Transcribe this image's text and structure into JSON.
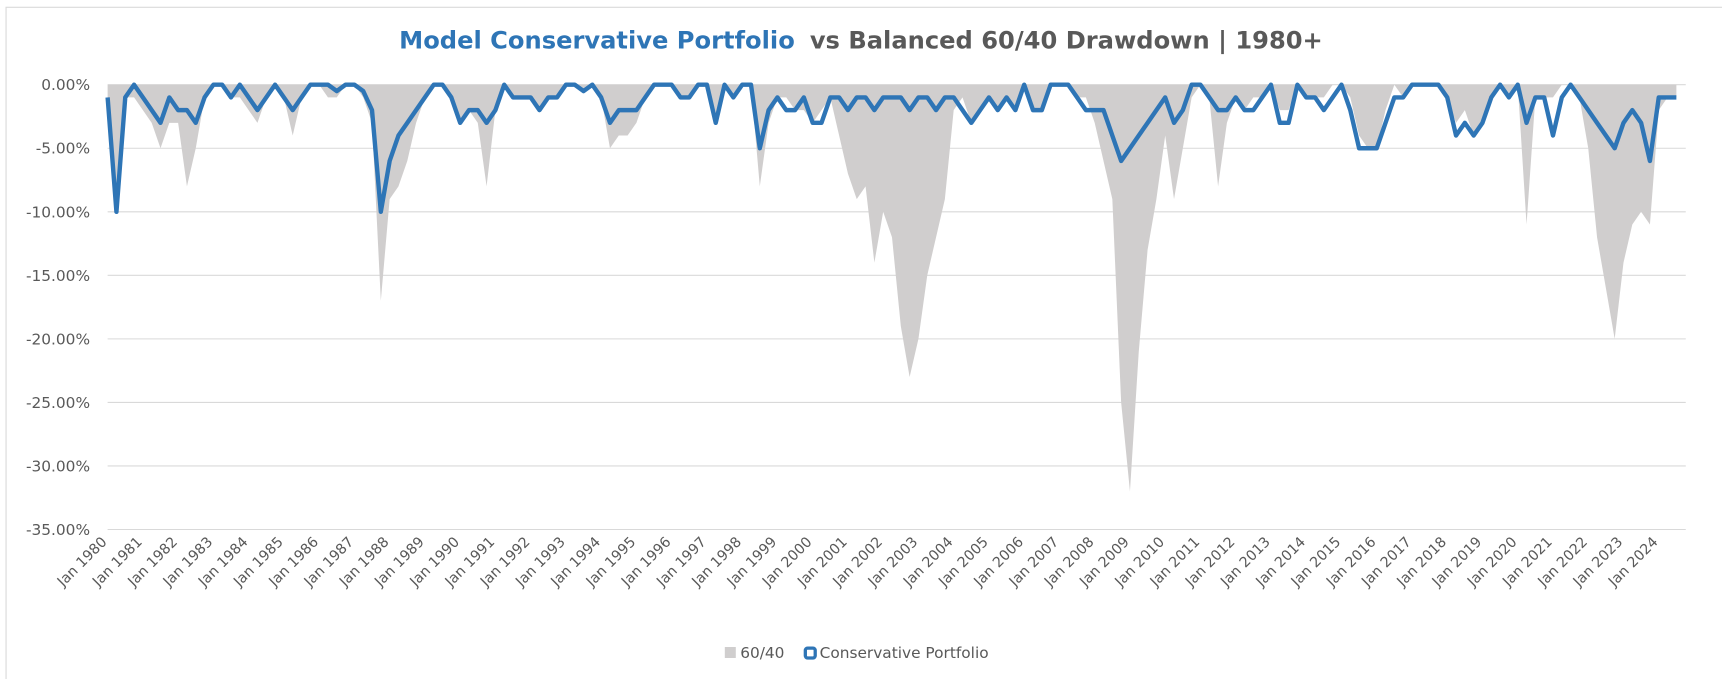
{
  "chart_data": {
    "type": "area_line",
    "title": [
      {
        "text": "Model Conservative Portfolio",
        "color": "#2e75b6"
      },
      {
        "text": "vs Balanced 60/40 Drawdown | 1980+",
        "color": "#595959"
      }
    ],
    "categories": [
      "Jan 1980",
      null,
      null,
      null,
      "Jan 1981",
      null,
      null,
      null,
      "Jan 1982",
      null,
      null,
      null,
      "Jan 1983",
      null,
      null,
      null,
      "Jan 1984",
      null,
      null,
      null,
      "Jan 1985",
      null,
      null,
      null,
      "Jan 1986",
      null,
      null,
      null,
      "Jan 1987",
      null,
      null,
      null,
      "Jan 1988",
      null,
      null,
      null,
      "Jan 1989",
      null,
      null,
      null,
      "Jan 1990",
      null,
      null,
      null,
      "Jan 1991",
      null,
      null,
      null,
      "Jan 1992",
      null,
      null,
      null,
      "Jan 1993",
      null,
      null,
      null,
      "Jan 1994",
      null,
      null,
      null,
      "Jan 1995",
      null,
      null,
      null,
      "Jan 1996",
      null,
      null,
      null,
      "Jan 1997",
      null,
      null,
      null,
      "Jan 1998",
      null,
      null,
      null,
      "Jan 1999",
      null,
      null,
      null,
      "Jan 2000",
      null,
      null,
      null,
      "Jan 2001",
      null,
      null,
      null,
      "Jan 2002",
      null,
      null,
      null,
      "Jan 2003",
      null,
      null,
      null,
      "Jan 2004",
      null,
      null,
      null,
      "Jan 2005",
      null,
      null,
      null,
      "Jan 2006",
      null,
      null,
      null,
      "Jan 2007",
      null,
      null,
      null,
      "Jan 2008",
      null,
      null,
      null,
      "Jan 2009",
      null,
      null,
      null,
      "Jan 2010",
      null,
      null,
      null,
      "Jan 2011",
      null,
      null,
      null,
      "Jan 2012",
      null,
      null,
      null,
      "Jan 2013",
      null,
      null,
      null,
      "Jan 2014",
      null,
      null,
      null,
      "Jan 2015",
      null,
      null,
      null,
      "Jan 2016",
      null,
      null,
      null,
      "Jan 2017",
      null,
      null,
      null,
      "Jan 2018",
      null,
      null,
      null,
      "Jan 2019",
      null,
      null,
      null,
      "Jan 2020",
      null,
      null,
      null,
      "Jan 2021",
      null,
      null,
      null,
      "Jan 2022",
      null,
      null,
      null,
      "Jan 2023",
      null,
      null,
      null,
      "Jan 2024",
      null,
      null
    ],
    "series": [
      {
        "name": "60/40",
        "color": "#d0cece",
        "kind": "area",
        "values": [
          -2,
          -10,
          -1,
          -1,
          -2,
          -3,
          -5,
          -3,
          -3,
          -8,
          -5,
          -1,
          0,
          0,
          -1,
          -1,
          -2,
          -3,
          -1,
          0,
          -1,
          -4,
          -1,
          0,
          0,
          -1,
          -1,
          0,
          0,
          -1,
          -3,
          -17,
          -9,
          -8,
          -6,
          -3,
          -1,
          0,
          0,
          -1,
          -3,
          -2,
          -3,
          -8,
          -2,
          0,
          -1,
          -1,
          -1,
          -2,
          -1,
          -1,
          0,
          0,
          -0.5,
          0,
          -1,
          -5,
          -4,
          -4,
          -3,
          -1,
          0,
          0,
          0,
          -1,
          -1,
          0,
          0,
          -3,
          0,
          -1,
          0,
          0,
          -8,
          -3,
          -1,
          -1,
          -2,
          -2,
          -3,
          -2,
          -1,
          -4,
          -7,
          -9,
          -8,
          -14,
          -10,
          -12,
          -19,
          -23,
          -20,
          -15,
          -12,
          -9,
          -2,
          -1,
          -3,
          -2,
          -1,
          -2,
          -1,
          -2,
          0,
          -2,
          -2,
          0,
          0,
          0,
          -1,
          -1,
          -3,
          -6,
          -9,
          -25,
          -32,
          -21,
          -13,
          -9,
          -4,
          -9,
          -5,
          -1,
          0,
          -1,
          -8,
          -3,
          -1,
          -2,
          -1,
          -1,
          0,
          -2,
          -2,
          0,
          -1,
          -1,
          -1,
          0,
          0,
          -1,
          -4,
          -5,
          -5,
          -2,
          0,
          -1,
          0,
          0,
          0,
          0,
          -1,
          -3,
          -2,
          -4,
          -3,
          -1,
          0,
          -1,
          0,
          -11,
          -1,
          -1,
          -1,
          0,
          0,
          -1,
          -5,
          -12,
          -16,
          -20,
          -14,
          -11,
          -10,
          -11,
          -2,
          -1,
          -1
        ]
      },
      {
        "name": "Conservative Portfolio",
        "color": "#2e75b6",
        "kind": "line",
        "values": [
          -1,
          -10,
          -1,
          0,
          -1,
          -2,
          -3,
          -1,
          -2,
          -2,
          -3,
          -1,
          0,
          0,
          -1,
          0,
          -1,
          -2,
          -1,
          0,
          -1,
          -2,
          -1,
          0,
          0,
          0,
          -0.5,
          0,
          0,
          -0.5,
          -2,
          -10,
          -6,
          -4,
          -3,
          -2,
          -1,
          0,
          0,
          -1,
          -3,
          -2,
          -2,
          -3,
          -2,
          0,
          -1,
          -1,
          -1,
          -2,
          -1,
          -1,
          0,
          0,
          -0.5,
          0,
          -1,
          -3,
          -2,
          -2,
          -2,
          -1,
          0,
          0,
          0,
          -1,
          -1,
          0,
          0,
          -3,
          0,
          -1,
          0,
          0,
          -5,
          -2,
          -1,
          -2,
          -2,
          -1,
          -3,
          -3,
          -1,
          -1,
          -2,
          -1,
          -1,
          -2,
          -1,
          -1,
          -1,
          -2,
          -1,
          -1,
          -2,
          -1,
          -1,
          -2,
          -3,
          -2,
          -1,
          -2,
          -1,
          -2,
          0,
          -2,
          -2,
          0,
          0,
          0,
          -1,
          -2,
          -2,
          -2,
          -4,
          -6,
          -5,
          -4,
          -3,
          -2,
          -1,
          -3,
          -2,
          0,
          0,
          -1,
          -2,
          -2,
          -1,
          -2,
          -2,
          -1,
          0,
          -3,
          -3,
          0,
          -1,
          -1,
          -2,
          -1,
          0,
          -2,
          -5,
          -5,
          -5,
          -3,
          -1,
          -1,
          0,
          0,
          0,
          0,
          -1,
          -4,
          -3,
          -4,
          -3,
          -1,
          0,
          -1,
          0,
          -3,
          -1,
          -1,
          -4,
          -1,
          0,
          -1,
          -2,
          -3,
          -4,
          -5,
          -3,
          -2,
          -3,
          -6,
          -1,
          -1,
          -1
        ]
      }
    ],
    "ylim": [
      -35,
      0
    ],
    "yticks": [
      {
        "value": 0,
        "label": "0.00%"
      },
      {
        "value": -5,
        "label": "-5.00%"
      },
      {
        "value": -10,
        "label": "-10.00%"
      },
      {
        "value": -15,
        "label": "-15.00%"
      },
      {
        "value": -20,
        "label": "-20.00%"
      },
      {
        "value": -25,
        "label": "-25.00%"
      },
      {
        "value": -30,
        "label": "-30.00%"
      },
      {
        "value": -35,
        "label": "-35.00%"
      }
    ],
    "grid": true,
    "legend": "bottom"
  }
}
